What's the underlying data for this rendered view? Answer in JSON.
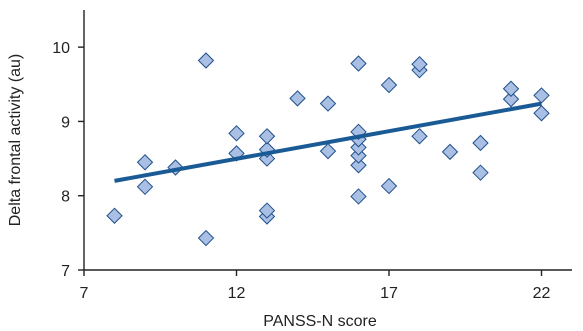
{
  "chart_data": {
    "type": "scatter",
    "xlabel": "PANSS-N score",
    "ylabel": "Delta frontal activity (au)",
    "xlim": [
      7,
      23
    ],
    "ylim": [
      7,
      10.5
    ],
    "x_ticks": [
      7,
      12,
      17,
      22
    ],
    "y_ticks": [
      7,
      8,
      9,
      10
    ],
    "grid": false,
    "marker": "diamond",
    "colors": {
      "marker_fill": "#a9bfe3",
      "marker_stroke": "#1f4f8a",
      "trend_line": "#1a5b96",
      "axis": "#222222"
    },
    "points": [
      {
        "x": 8,
        "y": 7.73
      },
      {
        "x": 9,
        "y": 8.12
      },
      {
        "x": 9,
        "y": 8.45
      },
      {
        "x": 10,
        "y": 8.38
      },
      {
        "x": 11,
        "y": 7.43
      },
      {
        "x": 11,
        "y": 9.82
      },
      {
        "x": 12,
        "y": 8.57
      },
      {
        "x": 12,
        "y": 8.84
      },
      {
        "x": 13,
        "y": 7.72
      },
      {
        "x": 13,
        "y": 7.8
      },
      {
        "x": 13,
        "y": 8.5
      },
      {
        "x": 13,
        "y": 8.62
      },
      {
        "x": 13,
        "y": 8.8
      },
      {
        "x": 14,
        "y": 9.31
      },
      {
        "x": 15,
        "y": 8.6
      },
      {
        "x": 15,
        "y": 9.24
      },
      {
        "x": 16,
        "y": 7.99
      },
      {
        "x": 16,
        "y": 8.41
      },
      {
        "x": 16,
        "y": 8.54
      },
      {
        "x": 16,
        "y": 8.65
      },
      {
        "x": 16,
        "y": 8.76
      },
      {
        "x": 16,
        "y": 8.86
      },
      {
        "x": 16,
        "y": 9.78
      },
      {
        "x": 17,
        "y": 8.13
      },
      {
        "x": 17,
        "y": 9.49
      },
      {
        "x": 18,
        "y": 8.8
      },
      {
        "x": 18,
        "y": 9.69
      },
      {
        "x": 18,
        "y": 9.77
      },
      {
        "x": 19,
        "y": 8.59
      },
      {
        "x": 20,
        "y": 8.31
      },
      {
        "x": 20,
        "y": 8.71
      },
      {
        "x": 21,
        "y": 9.3
      },
      {
        "x": 21,
        "y": 9.44
      },
      {
        "x": 22,
        "y": 9.11
      },
      {
        "x": 22,
        "y": 9.35
      }
    ],
    "trend_line": {
      "x": [
        8,
        22
      ],
      "y": [
        8.2,
        9.24
      ]
    }
  }
}
